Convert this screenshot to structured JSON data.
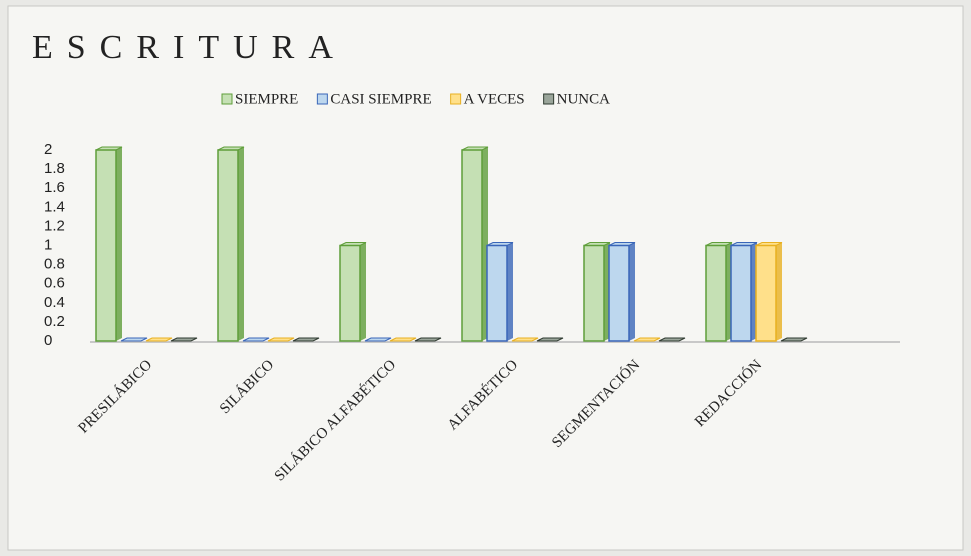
{
  "chart_data": {
    "type": "bar",
    "title": "ESCRITURA",
    "categories": [
      "PRESILÁBICO",
      "SILÁBICO",
      "SILÁBICO ALFABÉTICO",
      "ALFABÉTICO",
      "SEGMENTACIÓN",
      "REDACCIÓN"
    ],
    "series": [
      {
        "name": "SIEMPRE",
        "color": "#c5e0b4",
        "stroke": "#5f9e3a",
        "values": [
          2,
          2,
          1,
          2,
          1,
          1
        ]
      },
      {
        "name": "CASI SIEMPRE",
        "color": "#bdd7ee",
        "stroke": "#3a66b8",
        "values": [
          0,
          0,
          0,
          1,
          1,
          1
        ]
      },
      {
        "name": "A VECES",
        "color": "#ffe08a",
        "stroke": "#e8b020",
        "values": [
          0,
          0,
          0,
          0,
          0,
          1
        ]
      },
      {
        "name": "NUNCA",
        "color": "#9aa59a",
        "stroke": "#2f3a30",
        "values": [
          0,
          0,
          0,
          0,
          0,
          0
        ]
      }
    ],
    "ylim": [
      0,
      2
    ],
    "yticks": [
      0,
      0.2,
      0.4,
      0.6,
      0.8,
      1,
      1.2,
      1.4,
      1.6,
      1.8,
      2
    ],
    "legend": "top",
    "grid": false
  }
}
